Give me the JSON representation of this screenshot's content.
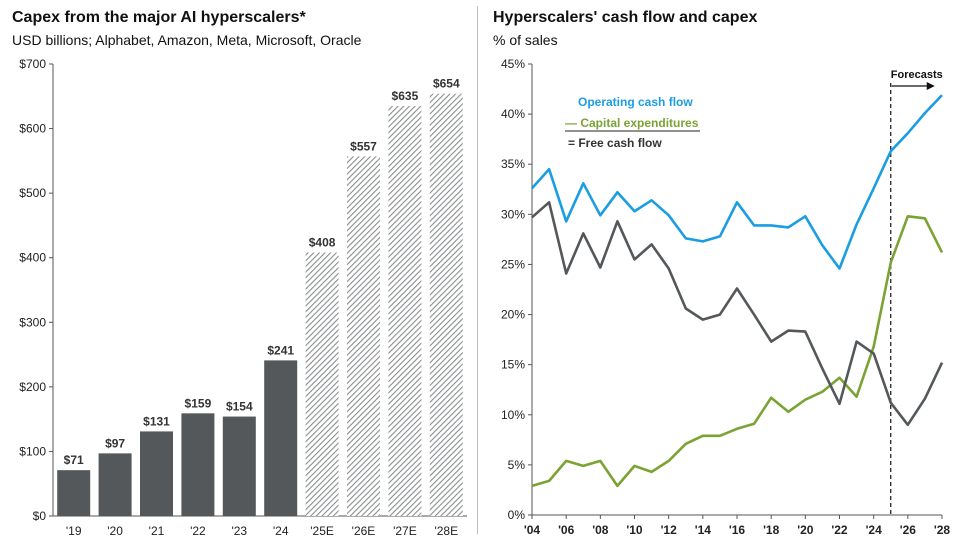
{
  "left": {
    "title": "Capex from the major AI hyperscalers*",
    "subtitle": "USD billions; Alphabet, Amazon, Meta, Microsoft, Oracle"
  },
  "right": {
    "title": "Hyperscalers' cash flow and capex",
    "subtitle": "% of sales"
  },
  "chart_data": [
    {
      "type": "bar",
      "categories": [
        "'19",
        "'20",
        "'21",
        "'22",
        "'23",
        "'24",
        "'25E",
        "'26E",
        "'27E",
        "'28E"
      ],
      "values": [
        71,
        97,
        131,
        159,
        154,
        241,
        408,
        557,
        635,
        654
      ],
      "data_labels": [
        "$71",
        "$97",
        "$131",
        "$159",
        "$154",
        "$241",
        "$408",
        "$557",
        "$635",
        "$654"
      ],
      "estimate_from_index": 6,
      "ylim": [
        0,
        700
      ],
      "yticks": [
        0,
        100,
        200,
        300,
        400,
        500,
        600,
        700
      ],
      "ytick_labels": [
        "$0",
        "$100",
        "$200",
        "$300",
        "$400",
        "$500",
        "$600",
        "$700"
      ],
      "colors": {
        "actual": "#54585a",
        "estimate_hatch": "#8a8d8f"
      },
      "grid": false
    },
    {
      "type": "line",
      "x": [
        2004,
        2005,
        2006,
        2007,
        2008,
        2009,
        2010,
        2011,
        2012,
        2013,
        2014,
        2015,
        2016,
        2017,
        2018,
        2019,
        2020,
        2021,
        2022,
        2023,
        2024,
        2025,
        2026,
        2027,
        2028
      ],
      "xticks": [
        2004,
        2006,
        2008,
        2010,
        2012,
        2014,
        2016,
        2018,
        2020,
        2022,
        2024,
        2026,
        2028
      ],
      "xtick_labels": [
        "'04",
        "'06",
        "'08",
        "'10",
        "'12",
        "'14",
        "'16",
        "'18",
        "'20",
        "'22",
        "'24",
        "'26",
        "'28"
      ],
      "ylim": [
        0,
        45
      ],
      "yticks": [
        0,
        5,
        10,
        15,
        20,
        25,
        30,
        35,
        40,
        45
      ],
      "ytick_labels": [
        "0%",
        "5%",
        "10%",
        "15%",
        "20%",
        "25%",
        "30%",
        "35%",
        "40%",
        "45%"
      ],
      "series": [
        {
          "name": "Operating cash flow",
          "color": "#1b9de2",
          "values": [
            32.6,
            34.5,
            29.3,
            33.1,
            29.9,
            32.2,
            30.3,
            31.4,
            29.9,
            27.6,
            27.3,
            27.8,
            31.2,
            28.9,
            28.9,
            28.7,
            29.8,
            26.9,
            24.6,
            29.0,
            32.6,
            36.3,
            38.1,
            40.1,
            41.9
          ]
        },
        {
          "name": "Capital expenditures",
          "color": "#7ba334",
          "values": [
            2.9,
            3.4,
            5.4,
            4.9,
            5.4,
            2.9,
            4.9,
            4.3,
            5.4,
            7.1,
            7.9,
            7.9,
            8.6,
            9.1,
            11.7,
            10.3,
            11.5,
            12.3,
            13.7,
            11.8,
            16.8,
            25.2,
            29.8,
            29.6,
            26.2
          ]
        },
        {
          "name": "Free cash flow",
          "color": "#54585a",
          "values": [
            29.7,
            31.2,
            24.1,
            28.1,
            24.7,
            29.3,
            25.5,
            27.0,
            24.6,
            20.6,
            19.5,
            20.0,
            22.6,
            20.0,
            17.3,
            18.4,
            18.3,
            14.6,
            11.1,
            17.3,
            16.1,
            11.2,
            9.0,
            11.6,
            15.2
          ]
        }
      ],
      "forecast_start_x": 2025,
      "forecast_label": "Forecasts",
      "legend_position": "top-left",
      "grid": false
    }
  ]
}
